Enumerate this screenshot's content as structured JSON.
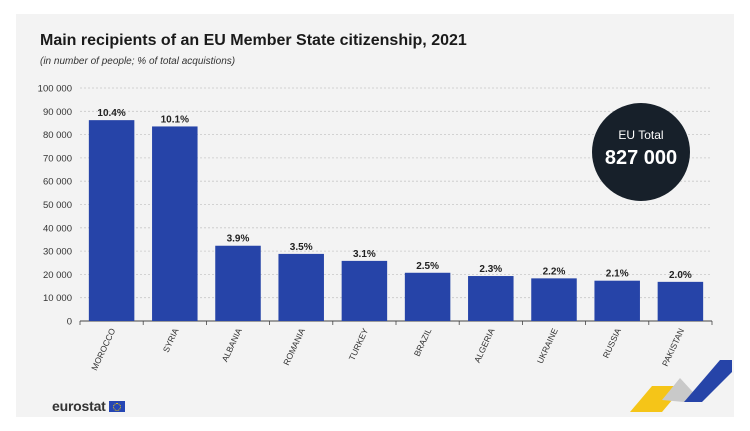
{
  "chart_data": {
    "type": "bar",
    "title": "Main recipients of an EU Member State citizenship, 2021",
    "subtitle": "(in number of people; % of total acquistions)",
    "categories": [
      "MOROCCO",
      "SYRIA",
      "ALBANIA",
      "ROMANIA",
      "TURKEY",
      "BRAZIL",
      "ALGERIA",
      "UKRAINE",
      "RUSSIA",
      "PAKISTAN"
    ],
    "values": [
      86200,
      83500,
      32300,
      28800,
      25800,
      20700,
      19300,
      18300,
      17300,
      16800
    ],
    "data_labels": [
      "10.4%",
      "10.1%",
      "3.9%",
      "3.5%",
      "3.1%",
      "2.5%",
      "2.3%",
      "2.2%",
      "2.1%",
      "2.0%"
    ],
    "ylim": [
      0,
      100000
    ],
    "yticks": [
      0,
      10000,
      20000,
      30000,
      40000,
      50000,
      60000,
      70000,
      80000,
      90000,
      100000
    ],
    "ytick_labels": [
      "0",
      "10 000",
      "20 000",
      "30 000",
      "40 000",
      "50 000",
      "60 000",
      "70 000",
      "80 000",
      "90 000",
      "100 000"
    ],
    "xlabel": "",
    "ylabel": "",
    "grid": true,
    "bar_color": "#2644a8"
  },
  "badge": {
    "label": "EU Total",
    "value": "827 000"
  },
  "logo": {
    "text": "eurostat"
  }
}
